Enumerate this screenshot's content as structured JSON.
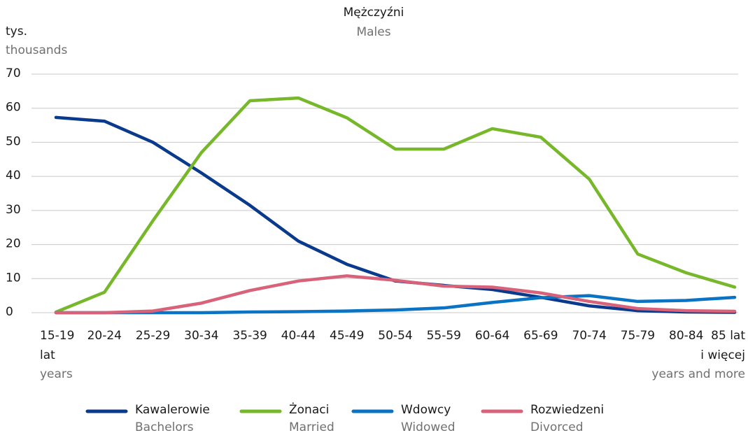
{
  "chart_data": {
    "type": "line",
    "title": "Mężczyźni",
    "subtitle": "Males",
    "y_label": "tys.",
    "y_label_en": "thousands",
    "categories": [
      "15-19",
      "20-24",
      "25-29",
      "30-34",
      "35-39",
      "40-44",
      "45-49",
      "50-54",
      "55-59",
      "60-64",
      "65-69",
      "70-74",
      "75-79",
      "80-84",
      "85 lat"
    ],
    "x_unit": "lat",
    "x_unit_en": "years",
    "last_suffix": "i więcej",
    "last_suffix_en": "years and more",
    "series": [
      {
        "name": "Kawalerowie",
        "name_en": "Bachelors",
        "color": "#0a3a8c",
        "values": [
          57.3,
          56.2,
          50,
          41,
          31.5,
          21,
          14.2,
          9.3,
          8,
          6.8,
          4.5,
          2,
          0.6,
          0.2,
          0.1
        ]
      },
      {
        "name": "Żonaci",
        "name_en": "Married",
        "color": "#76b82a",
        "values": [
          0.2,
          6,
          27,
          47,
          62.2,
          63,
          57.2,
          48,
          48,
          54,
          51.5,
          39.2,
          17.2,
          11.7,
          7.5
        ]
      },
      {
        "name": "Wdowcy",
        "name_en": "Widowed",
        "color": "#0a73c4",
        "values": [
          0,
          0,
          0,
          0,
          0.2,
          0.3,
          0.5,
          0.8,
          1.4,
          3,
          4.4,
          5,
          3.3,
          3.6,
          4.5
        ]
      },
      {
        "name": "Rozwiedzeni",
        "name_en": "Divorced",
        "color": "#d8627a",
        "values": [
          0,
          0,
          0.5,
          2.8,
          6.5,
          9.3,
          10.8,
          9.5,
          7.8,
          7.5,
          5.8,
          3.3,
          1.2,
          0.6,
          0.4
        ]
      }
    ],
    "ylim": [
      0,
      70
    ],
    "yticks": [
      0,
      10,
      20,
      30,
      40,
      50,
      60,
      70
    ],
    "grid": true
  }
}
